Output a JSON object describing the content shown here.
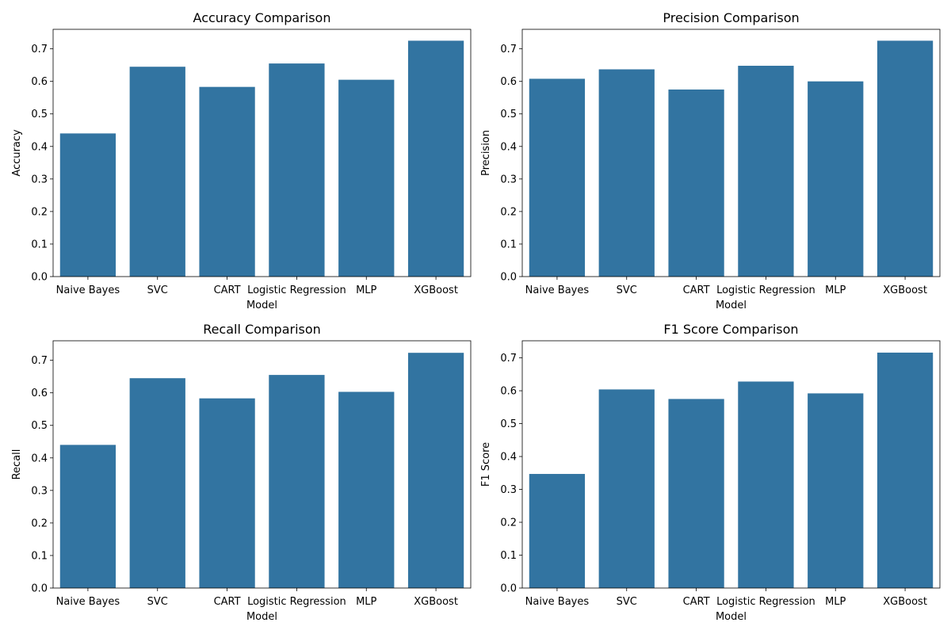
{
  "chart_data": [
    {
      "type": "bar",
      "title": "Accuracy Comparison",
      "xlabel": "Model",
      "ylabel": "Accuracy",
      "categories": [
        "Naive Bayes",
        "SVC",
        "CART",
        "Logistic Regression",
        "MLP",
        "XGBoost"
      ],
      "values": [
        0.44,
        0.645,
        0.583,
        0.655,
        0.605,
        0.725
      ],
      "ylim": [
        0,
        0.76
      ],
      "yticks": [
        0.0,
        0.1,
        0.2,
        0.3,
        0.4,
        0.5,
        0.6,
        0.7
      ],
      "ytick_labels": [
        "0.0",
        "0.1",
        "0.2",
        "0.3",
        "0.4",
        "0.5",
        "0.6",
        "0.7"
      ],
      "bar_color": "#3274a1",
      "grid": false
    },
    {
      "type": "bar",
      "title": "Precision Comparison",
      "xlabel": "Model",
      "ylabel": "Precision",
      "categories": [
        "Naive Bayes",
        "SVC",
        "CART",
        "Logistic Regression",
        "MLP",
        "XGBoost"
      ],
      "values": [
        0.608,
        0.637,
        0.575,
        0.648,
        0.6,
        0.725
      ],
      "ylim": [
        0,
        0.76
      ],
      "yticks": [
        0.0,
        0.1,
        0.2,
        0.3,
        0.4,
        0.5,
        0.6,
        0.7
      ],
      "ytick_labels": [
        "0.0",
        "0.1",
        "0.2",
        "0.3",
        "0.4",
        "0.5",
        "0.6",
        "0.7"
      ],
      "bar_color": "#3274a1",
      "grid": false
    },
    {
      "type": "bar",
      "title": "Recall Comparison",
      "xlabel": "Model",
      "ylabel": "Recall",
      "categories": [
        "Naive Bayes",
        "SVC",
        "CART",
        "Logistic Regression",
        "MLP",
        "XGBoost"
      ],
      "values": [
        0.44,
        0.645,
        0.583,
        0.655,
        0.603,
        0.723
      ],
      "ylim": [
        0,
        0.76
      ],
      "yticks": [
        0.0,
        0.1,
        0.2,
        0.3,
        0.4,
        0.5,
        0.6,
        0.7
      ],
      "ytick_labels": [
        "0.0",
        "0.1",
        "0.2",
        "0.3",
        "0.4",
        "0.5",
        "0.6",
        "0.7"
      ],
      "bar_color": "#3274a1",
      "grid": false
    },
    {
      "type": "bar",
      "title": "F1 Score Comparison",
      "xlabel": "Model",
      "ylabel": "F1 Score",
      "categories": [
        "Naive Bayes",
        "SVC",
        "CART",
        "Logistic Regression",
        "MLP",
        "XGBoost"
      ],
      "values": [
        0.347,
        0.604,
        0.575,
        0.628,
        0.592,
        0.716
      ],
      "ylim": [
        0,
        0.752
      ],
      "yticks": [
        0.0,
        0.1,
        0.2,
        0.3,
        0.4,
        0.5,
        0.6,
        0.7
      ],
      "ytick_labels": [
        "0.0",
        "0.1",
        "0.2",
        "0.3",
        "0.4",
        "0.5",
        "0.6",
        "0.7"
      ],
      "bar_color": "#3274a1",
      "grid": false
    }
  ]
}
